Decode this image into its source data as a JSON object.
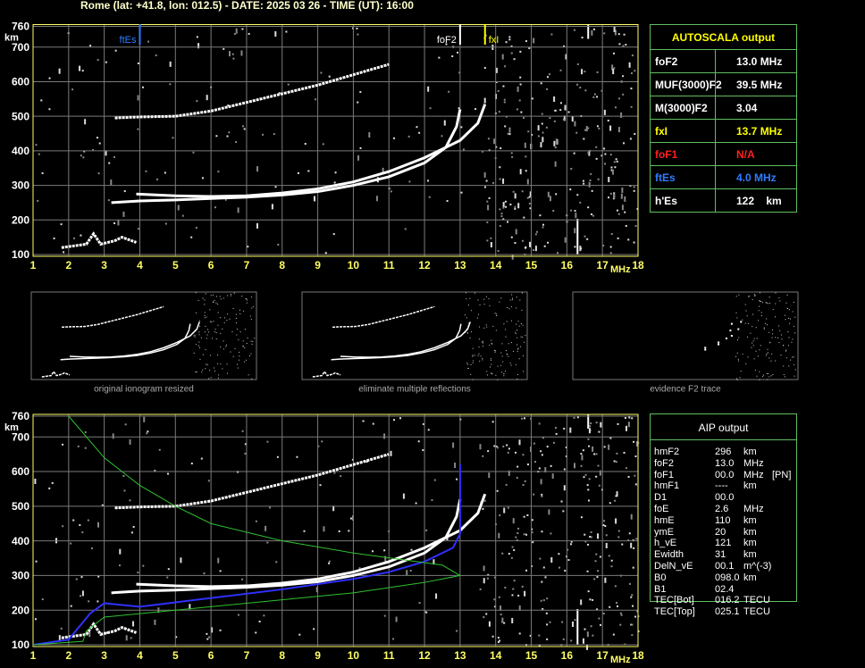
{
  "header": "Rome (lat: +41.8, lon: 012.5) - DATE: 2025 03 26 - TIME (UT): 16:00",
  "ionogram": {
    "xlim": [
      1,
      18
    ],
    "ylim": [
      100,
      760
    ],
    "xticks": [
      1,
      2,
      3,
      4,
      5,
      6,
      7,
      8,
      9,
      10,
      11,
      12,
      13,
      14,
      15,
      16,
      17,
      18
    ],
    "yticks": [
      100,
      200,
      300,
      400,
      500,
      600,
      700,
      760
    ],
    "x_unit": "MHz",
    "y_unit": "km",
    "markers": [
      {
        "label": "ftEs",
        "value": 4.0,
        "color": "#2f7dff"
      },
      {
        "label": "foF2",
        "value": 13.0,
        "color": "#ffffff"
      },
      {
        "label": "fxI",
        "value": 13.7,
        "color": "#ffff00"
      }
    ],
    "traces": [
      {
        "x": [
          3.2,
          4,
          5,
          6,
          7,
          8,
          9,
          10,
          11,
          12,
          12.6,
          12.9,
          13.0
        ],
        "y": [
          250,
          255,
          258,
          262,
          266,
          272,
          282,
          300,
          325,
          365,
          410,
          470,
          520
        ]
      },
      {
        "x": [
          3.9,
          5,
          6,
          7,
          8,
          9,
          10,
          11,
          12,
          13,
          13.5,
          13.7
        ],
        "y": [
          275,
          270,
          268,
          270,
          278,
          290,
          310,
          340,
          380,
          430,
          480,
          535
        ]
      },
      {
        "x": [
          3.3,
          4,
          5,
          6,
          7,
          8,
          9,
          10,
          11
        ],
        "y": [
          495,
          498,
          500,
          515,
          540,
          565,
          590,
          620,
          650
        ]
      },
      {
        "x": [
          1.8,
          2.5,
          2.7,
          2.9,
          3.3,
          3.5,
          3.9
        ],
        "y": [
          120,
          130,
          160,
          130,
          140,
          150,
          135
        ]
      }
    ]
  },
  "profile": {
    "xlim": [
      1,
      18
    ],
    "ylim": [
      100,
      760
    ],
    "xticks": [
      1,
      2,
      3,
      4,
      5,
      6,
      7,
      8,
      9,
      10,
      11,
      12,
      13,
      14,
      15,
      16,
      17,
      18
    ],
    "yticks": [
      100,
      200,
      300,
      400,
      500,
      600,
      700,
      760
    ],
    "x_unit": "MHz",
    "y_unit": "km",
    "traces": [
      {
        "color": "#3030ff",
        "x": [
          1,
          2,
          2.6,
          3,
          4,
          6,
          8,
          10,
          11,
          12,
          12.8,
          13,
          13
        ],
        "y": [
          100,
          115,
          190,
          220,
          210,
          235,
          260,
          290,
          310,
          340,
          380,
          420,
          620
        ]
      },
      {
        "color": "#30c030",
        "x": [
          1,
          2.4,
          2.5,
          3,
          5,
          8,
          10,
          12,
          13,
          12.5,
          10,
          8,
          6,
          5,
          4,
          3,
          2
        ],
        "y": [
          100,
          110,
          140,
          180,
          200,
          230,
          250,
          280,
          300,
          330,
          365,
          400,
          450,
          500,
          560,
          640,
          760
        ]
      }
    ]
  },
  "panels": [
    {
      "caption": "original ionogram resized"
    },
    {
      "caption": "eliminate multiple reflections"
    },
    {
      "caption": "evidence F2 trace"
    }
  ],
  "autoscala": {
    "title": "AUTOSCALA output",
    "rows": [
      {
        "label": "foF2",
        "value": "13.0 MHz",
        "color": "#ffffff"
      },
      {
        "label": "MUF(3000)F2",
        "value": "39.5 MHz",
        "color": "#ffffff"
      },
      {
        "label": "M(3000)F2",
        "value": "3.04",
        "color": "#ffffff"
      },
      {
        "label": "fxI",
        "value": "13.7 MHz",
        "color": "#ffff00"
      },
      {
        "label": "foF1",
        "value": "N/A",
        "color": "#ff2020"
      },
      {
        "label": "ftEs",
        "value": "4.0 MHz",
        "color": "#2f7dff"
      },
      {
        "label": "h'Es",
        "value": "122    km",
        "color": "#ffffff"
      }
    ]
  },
  "aip": {
    "title": "AIP output",
    "rows": [
      [
        "hmF2",
        "296",
        "km"
      ],
      [
        "foF2",
        "13.0",
        "MHz"
      ],
      [
        "foF1",
        "00.0",
        "MHz",
        "[PN]"
      ],
      [
        "hmF1",
        "----",
        "km"
      ],
      [
        "D1",
        "00.0"
      ],
      [
        "foE",
        "2.6",
        "MHz"
      ],
      [
        "hmE",
        "110",
        "km"
      ],
      [
        "ymE",
        "20",
        "km"
      ],
      [
        "h_vE",
        "121",
        "km"
      ],
      [
        "Ewidth",
        "31",
        "km"
      ],
      [
        "DelN_vE",
        "00.1",
        "m^(-3)"
      ],
      [
        "B0",
        "098.0",
        "km"
      ],
      [
        "B1",
        "02.4"
      ],
      [
        "TEC[Bot]",
        "016.2",
        "TECU"
      ],
      [
        "TEC[Top]",
        "025.1",
        "TECU"
      ]
    ]
  }
}
